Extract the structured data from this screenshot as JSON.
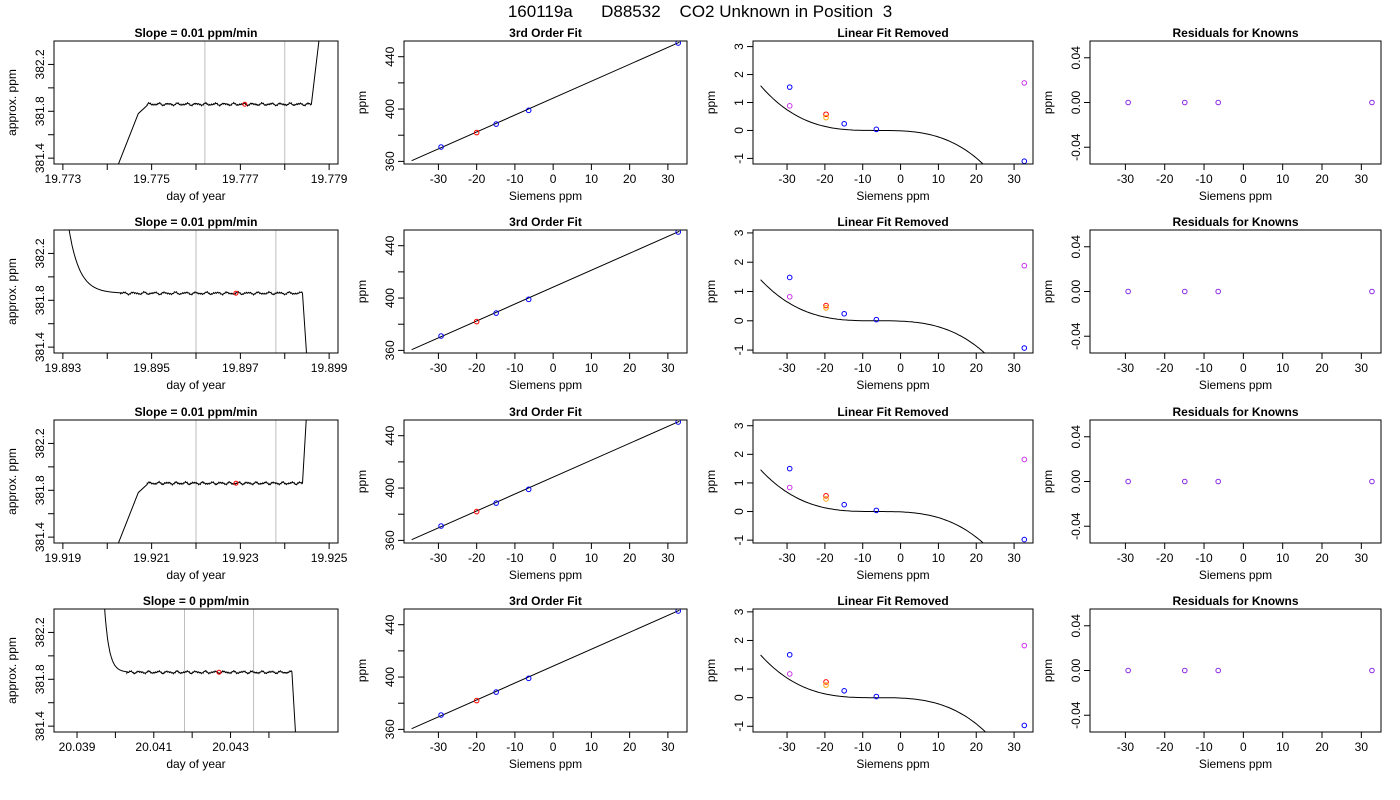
{
  "page_title": "160119a      D88532    CO2 Unknown in Position  3",
  "colors": {
    "trace": "#000000",
    "vline": "#bebebe",
    "marker_red": "#ff0000",
    "known": "#0000ff",
    "orange": "#ffa500",
    "magenta": "#cc33ee",
    "residual": "#8a2be2"
  },
  "chart_data": [
    {
      "type": "line",
      "panel": "timeseries",
      "title": "Slope =  0.01  ppm/min",
      "xlabel": "day of year",
      "ylabel": "approx. ppm",
      "xlim": [
        19.7728,
        19.7792
      ],
      "ylim": [
        381.35,
        382.4
      ],
      "xticks": [
        19.773,
        19.774,
        19.775,
        19.776,
        19.777,
        19.778,
        19.779
      ],
      "xticklabels": [
        "19.773",
        "",
        "19.775",
        "",
        "19.777",
        "",
        "19.779"
      ],
      "yticks": [
        381.4,
        381.6,
        381.8,
        382.0,
        382.2
      ],
      "yticklabels": [
        "381.4",
        "",
        "381.8",
        "",
        "382.2"
      ],
      "vlines": [
        19.7762,
        19.778
      ],
      "marker": {
        "x": 19.7771,
        "y": 381.86
      },
      "trace": {
        "start": 19.7742,
        "rise_end": 19.7747,
        "flat_start": 19.7749,
        "flat_end": 19.7786,
        "end": 19.7788,
        "low": 381.3,
        "level": 381.86,
        "high": 382.5
      }
    },
    {
      "type": "scatter",
      "panel": "fit",
      "title": "3rd Order Fit",
      "xlabel": "Siemens ppm",
      "ylabel": "ppm",
      "xlim": [
        -39,
        35
      ],
      "ylim": [
        358,
        452
      ],
      "xticks": [
        -30,
        -20,
        -10,
        0,
        10,
        20,
        30
      ],
      "yticks": [
        360,
        400,
        440
      ],
      "yminor": [
        380,
        420
      ],
      "curve": [
        [
          -37,
          360.5
        ],
        [
          33,
          451
        ]
      ],
      "points": [
        {
          "x": -29.3,
          "y": 371,
          "c": "known"
        },
        {
          "x": -20,
          "y": 382,
          "c": "marker_red"
        },
        {
          "x": -14.9,
          "y": 388.5,
          "c": "known"
        },
        {
          "x": -6.4,
          "y": 399,
          "c": "known"
        },
        {
          "x": 32.7,
          "y": 450.5,
          "c": "known"
        }
      ]
    },
    {
      "type": "scatter",
      "panel": "linear_removed",
      "title": "Linear Fit Removed",
      "xlabel": "Siemens ppm",
      "ylabel": "ppm",
      "xlim": [
        -39,
        35
      ],
      "ylim": [
        -1.2,
        3.2
      ],
      "xticks": [
        -30,
        -20,
        -10,
        0,
        10,
        20,
        30
      ],
      "yticks": [
        -1,
        0,
        1,
        2,
        3
      ],
      "cubic": {
        "a": -5.48e-05,
        "c": -6.2,
        "x0": -37,
        "x1": 32.8
      },
      "points": [
        {
          "x": -29.3,
          "y": 1.55,
          "c": "known"
        },
        {
          "x": -29.3,
          "y": 0.88,
          "c": "magenta"
        },
        {
          "x": -19.7,
          "y": 0.58,
          "c": "marker_red"
        },
        {
          "x": -19.7,
          "y": 0.46,
          "c": "orange"
        },
        {
          "x": -14.9,
          "y": 0.24,
          "c": "known"
        },
        {
          "x": -6.4,
          "y": 0.04,
          "c": "known"
        },
        {
          "x": 32.7,
          "y": -1.1,
          "c": "known"
        },
        {
          "x": 32.7,
          "y": 1.7,
          "c": "magenta"
        }
      ]
    },
    {
      "type": "scatter",
      "panel": "residuals",
      "title": "Residuals for Knowns",
      "xlabel": "Siemens ppm",
      "ylabel": "ppm",
      "xlim": [
        -39,
        35
      ],
      "ylim": [
        -0.055,
        0.055
      ],
      "xticks": [
        -30,
        -20,
        -10,
        0,
        10,
        20,
        30
      ],
      "yticks": [
        -0.04,
        0.0,
        0.04
      ],
      "yticklabels": [
        "-0.04",
        "0.00",
        "0.04"
      ],
      "points": [
        {
          "x": -29.3,
          "y": 0,
          "c": "residual"
        },
        {
          "x": -14.9,
          "y": 0,
          "c": "residual"
        },
        {
          "x": -6.4,
          "y": 0,
          "c": "residual"
        },
        {
          "x": 32.7,
          "y": 0,
          "c": "residual"
        }
      ]
    },
    {
      "type": "line",
      "panel": "timeseries",
      "title": "Slope =  0.01  ppm/min",
      "xlabel": "day of year",
      "ylabel": "approx. ppm",
      "xlim": [
        19.8928,
        19.8992
      ],
      "ylim": [
        381.35,
        382.4
      ],
      "xticks": [
        19.893,
        19.894,
        19.895,
        19.896,
        19.897,
        19.898,
        19.899
      ],
      "xticklabels": [
        "19.893",
        "",
        "19.895",
        "",
        "19.897",
        "",
        "19.899"
      ],
      "yticks": [
        381.4,
        381.6,
        381.8,
        382.0,
        382.2
      ],
      "yticklabels": [
        "381.4",
        "",
        "381.8",
        "",
        "382.2"
      ],
      "vlines": [
        19.896,
        19.8978
      ],
      "marker": {
        "x": 19.8969,
        "y": 381.86
      },
      "trace": {
        "start": 19.8931,
        "rise_end": 19.8941,
        "flat_start": 19.8943,
        "flat_end": 19.8984,
        "end": 19.8985,
        "low": 381.3,
        "level": 381.86,
        "high": 382.5,
        "decay": true
      }
    },
    {
      "type": "scatter",
      "panel": "fit",
      "title": "3rd Order Fit",
      "xlabel": "Siemens ppm",
      "ylabel": "ppm",
      "xlim": [
        -39,
        35
      ],
      "ylim": [
        358,
        452
      ],
      "xticks": [
        -30,
        -20,
        -10,
        0,
        10,
        20,
        30
      ],
      "yticks": [
        360,
        400,
        440
      ],
      "yminor": [
        380,
        420
      ],
      "curve": [
        [
          -37,
          360.5
        ],
        [
          33,
          451
        ]
      ],
      "points": [
        {
          "x": -29.3,
          "y": 371,
          "c": "known"
        },
        {
          "x": -20,
          "y": 382,
          "c": "marker_red"
        },
        {
          "x": -14.9,
          "y": 388.5,
          "c": "known"
        },
        {
          "x": -6.4,
          "y": 399,
          "c": "known"
        },
        {
          "x": 32.7,
          "y": 450.5,
          "c": "known"
        }
      ]
    },
    {
      "type": "scatter",
      "panel": "linear_removed",
      "title": "Linear Fit Removed",
      "xlabel": "Siemens ppm",
      "ylabel": "ppm",
      "xlim": [
        -39,
        35
      ],
      "ylim": [
        -1.1,
        3.1
      ],
      "xticks": [
        -30,
        -20,
        -10,
        0,
        10,
        20,
        30
      ],
      "yticks": [
        -1,
        0,
        1,
        2,
        3
      ],
      "cubic": {
        "a": -4.8e-05,
        "c": -6.2,
        "x0": -37,
        "x1": 32.8
      },
      "points": [
        {
          "x": -29.3,
          "y": 1.48,
          "c": "known"
        },
        {
          "x": -29.3,
          "y": 0.82,
          "c": "magenta"
        },
        {
          "x": -19.7,
          "y": 0.52,
          "c": "marker_red"
        },
        {
          "x": -19.7,
          "y": 0.44,
          "c": "orange"
        },
        {
          "x": -14.9,
          "y": 0.24,
          "c": "known"
        },
        {
          "x": -6.4,
          "y": 0.04,
          "c": "known"
        },
        {
          "x": 32.7,
          "y": -0.93,
          "c": "known"
        },
        {
          "x": 32.7,
          "y": 1.88,
          "c": "magenta"
        }
      ]
    },
    {
      "type": "scatter",
      "panel": "residuals",
      "title": "Residuals for Knowns",
      "xlabel": "Siemens ppm",
      "ylabel": "ppm",
      "xlim": [
        -39,
        35
      ],
      "ylim": [
        -0.055,
        0.055
      ],
      "xticks": [
        -30,
        -20,
        -10,
        0,
        10,
        20,
        30
      ],
      "yticks": [
        -0.04,
        0.0,
        0.04
      ],
      "yticklabels": [
        "-0.04",
        "0.00",
        "0.04"
      ],
      "points": [
        {
          "x": -29.3,
          "y": 0,
          "c": "residual"
        },
        {
          "x": -14.9,
          "y": 0,
          "c": "residual"
        },
        {
          "x": -6.4,
          "y": 0,
          "c": "residual"
        },
        {
          "x": 32.7,
          "y": 0,
          "c": "residual"
        }
      ]
    },
    {
      "type": "line",
      "panel": "timeseries",
      "title": "Slope =  0.01  ppm/min",
      "xlabel": "day of year",
      "ylabel": "approx. ppm",
      "xlim": [
        19.9188,
        19.9252
      ],
      "ylim": [
        381.35,
        382.4
      ],
      "xticks": [
        19.919,
        19.92,
        19.921,
        19.922,
        19.923,
        19.924,
        19.925
      ],
      "xticklabels": [
        "19.919",
        "",
        "19.921",
        "",
        "19.923",
        "",
        "19.925"
      ],
      "yticks": [
        381.4,
        381.6,
        381.8,
        382.0,
        382.2
      ],
      "yticklabels": [
        "381.4",
        "",
        "381.8",
        "",
        "382.2"
      ],
      "vlines": [
        19.922,
        19.9238
      ],
      "marker": {
        "x": 19.9229,
        "y": 381.86
      },
      "trace": {
        "start": 19.9202,
        "rise_end": 19.9207,
        "flat_start": 19.9209,
        "flat_end": 19.9244,
        "end": 19.9245,
        "low": 381.3,
        "level": 381.86,
        "high": 382.5
      }
    },
    {
      "type": "scatter",
      "panel": "fit",
      "title": "3rd Order Fit",
      "xlabel": "Siemens ppm",
      "ylabel": "ppm",
      "xlim": [
        -39,
        35
      ],
      "ylim": [
        358,
        452
      ],
      "xticks": [
        -30,
        -20,
        -10,
        0,
        10,
        20,
        30
      ],
      "yticks": [
        360,
        400,
        440
      ],
      "yminor": [
        380,
        420
      ],
      "curve": [
        [
          -37,
          360.5
        ],
        [
          33,
          451
        ]
      ],
      "points": [
        {
          "x": -29.3,
          "y": 371,
          "c": "known"
        },
        {
          "x": -20,
          "y": 382,
          "c": "marker_red"
        },
        {
          "x": -14.9,
          "y": 388.5,
          "c": "known"
        },
        {
          "x": -6.4,
          "y": 399,
          "c": "known"
        },
        {
          "x": 32.7,
          "y": 450.5,
          "c": "known"
        }
      ]
    },
    {
      "type": "scatter",
      "panel": "linear_removed",
      "title": "Linear Fit Removed",
      "xlabel": "Siemens ppm",
      "ylabel": "ppm",
      "xlim": [
        -39,
        35
      ],
      "ylim": [
        -1.1,
        3.2
      ],
      "xticks": [
        -30,
        -20,
        -10,
        0,
        10,
        20,
        30
      ],
      "yticks": [
        -1,
        0,
        1,
        2,
        3
      ],
      "cubic": {
        "a": -5e-05,
        "c": -6.2,
        "x0": -37,
        "x1": 32.8
      },
      "points": [
        {
          "x": -29.3,
          "y": 1.5,
          "c": "known"
        },
        {
          "x": -29.3,
          "y": 0.84,
          "c": "magenta"
        },
        {
          "x": -19.7,
          "y": 0.55,
          "c": "marker_red"
        },
        {
          "x": -19.7,
          "y": 0.44,
          "c": "orange"
        },
        {
          "x": -14.9,
          "y": 0.24,
          "c": "known"
        },
        {
          "x": -6.4,
          "y": 0.04,
          "c": "known"
        },
        {
          "x": 32.7,
          "y": -0.98,
          "c": "known"
        },
        {
          "x": 32.7,
          "y": 1.82,
          "c": "magenta"
        }
      ]
    },
    {
      "type": "scatter",
      "panel": "residuals",
      "title": "Residuals for Knowns",
      "xlabel": "Siemens ppm",
      "ylabel": "ppm",
      "xlim": [
        -39,
        35
      ],
      "ylim": [
        -0.055,
        0.055
      ],
      "xticks": [
        -30,
        -20,
        -10,
        0,
        10,
        20,
        30
      ],
      "yticks": [
        -0.04,
        0.0,
        0.04
      ],
      "yticklabels": [
        "-0.04",
        "0.00",
        "0.04"
      ],
      "points": [
        {
          "x": -29.3,
          "y": 0,
          "c": "residual"
        },
        {
          "x": -14.9,
          "y": 0,
          "c": "residual"
        },
        {
          "x": -6.4,
          "y": 0,
          "c": "residual"
        },
        {
          "x": 32.7,
          "y": 0,
          "c": "residual"
        }
      ]
    },
    {
      "type": "line",
      "panel": "timeseries",
      "title": "Slope =  0  ppm/min",
      "xlabel": "day of year",
      "ylabel": "approx. ppm",
      "xlim": [
        20.0384,
        20.0458
      ],
      "ylim": [
        381.35,
        382.4
      ],
      "xticks": [
        20.039,
        20.04,
        20.041,
        20.042,
        20.043,
        20.044
      ],
      "xticklabels": [
        "20.039",
        "",
        "20.041",
        "",
        "20.043",
        ""
      ],
      "yticks": [
        381.4,
        381.6,
        381.8,
        382.0,
        382.2
      ],
      "yticklabels": [
        "381.4",
        "",
        "381.8",
        "",
        "382.2"
      ],
      "vlines": [
        20.0418,
        20.0436
      ],
      "marker": {
        "x": 20.0427,
        "y": 381.86
      },
      "trace": {
        "start": 20.0397,
        "rise_end": 20.0401,
        "flat_start": 20.0403,
        "flat_end": 20.0446,
        "end": 20.0447,
        "low": 381.3,
        "level": 381.86,
        "high": 382.5,
        "decay": true
      }
    },
    {
      "type": "scatter",
      "panel": "fit",
      "title": "3rd Order Fit",
      "xlabel": "Siemens ppm",
      "ylabel": "ppm",
      "xlim": [
        -39,
        35
      ],
      "ylim": [
        358,
        452
      ],
      "xticks": [
        -30,
        -20,
        -10,
        0,
        10,
        20,
        30
      ],
      "yticks": [
        360,
        400,
        440
      ],
      "yminor": [
        380,
        420
      ],
      "curve": [
        [
          -37,
          360.5
        ],
        [
          33,
          451
        ]
      ],
      "points": [
        {
          "x": -29.3,
          "y": 371,
          "c": "known"
        },
        {
          "x": -20,
          "y": 382,
          "c": "marker_red"
        },
        {
          "x": -14.9,
          "y": 388.5,
          "c": "known"
        },
        {
          "x": -6.4,
          "y": 399,
          "c": "known"
        },
        {
          "x": 32.7,
          "y": 450.5,
          "c": "known"
        }
      ]
    },
    {
      "type": "scatter",
      "panel": "linear_removed",
      "title": "Linear Fit Removed",
      "xlabel": "Siemens ppm",
      "ylabel": "ppm",
      "xlim": [
        -39,
        35
      ],
      "ylim": [
        -1.2,
        3.1
      ],
      "xticks": [
        -30,
        -20,
        -10,
        0,
        10,
        20,
        30
      ],
      "yticks": [
        -1,
        0,
        1,
        2,
        3
      ],
      "cubic": {
        "a": -5.1e-05,
        "c": -6.2,
        "x0": -37,
        "x1": 32.8
      },
      "points": [
        {
          "x": -29.3,
          "y": 1.5,
          "c": "known"
        },
        {
          "x": -29.3,
          "y": 0.83,
          "c": "magenta"
        },
        {
          "x": -19.7,
          "y": 0.55,
          "c": "marker_red"
        },
        {
          "x": -19.7,
          "y": 0.44,
          "c": "orange"
        },
        {
          "x": -14.9,
          "y": 0.24,
          "c": "known"
        },
        {
          "x": -6.4,
          "y": 0.04,
          "c": "known"
        },
        {
          "x": 32.7,
          "y": -0.97,
          "c": "known"
        },
        {
          "x": 32.7,
          "y": 1.82,
          "c": "magenta"
        }
      ]
    },
    {
      "type": "scatter",
      "panel": "residuals",
      "title": "Residuals for Knowns",
      "xlabel": "Siemens ppm",
      "ylabel": "ppm",
      "xlim": [
        -39,
        35
      ],
      "ylim": [
        -0.055,
        0.055
      ],
      "xticks": [
        -30,
        -20,
        -10,
        0,
        10,
        20,
        30
      ],
      "yticks": [
        -0.04,
        0.0,
        0.04
      ],
      "yticklabels": [
        "-0.04",
        "0.00",
        "0.04"
      ],
      "points": [
        {
          "x": -29.3,
          "y": 0,
          "c": "residual"
        },
        {
          "x": -14.9,
          "y": 0,
          "c": "residual"
        },
        {
          "x": -6.4,
          "y": 0,
          "c": "residual"
        },
        {
          "x": 32.7,
          "y": 0,
          "c": "residual"
        }
      ]
    }
  ]
}
